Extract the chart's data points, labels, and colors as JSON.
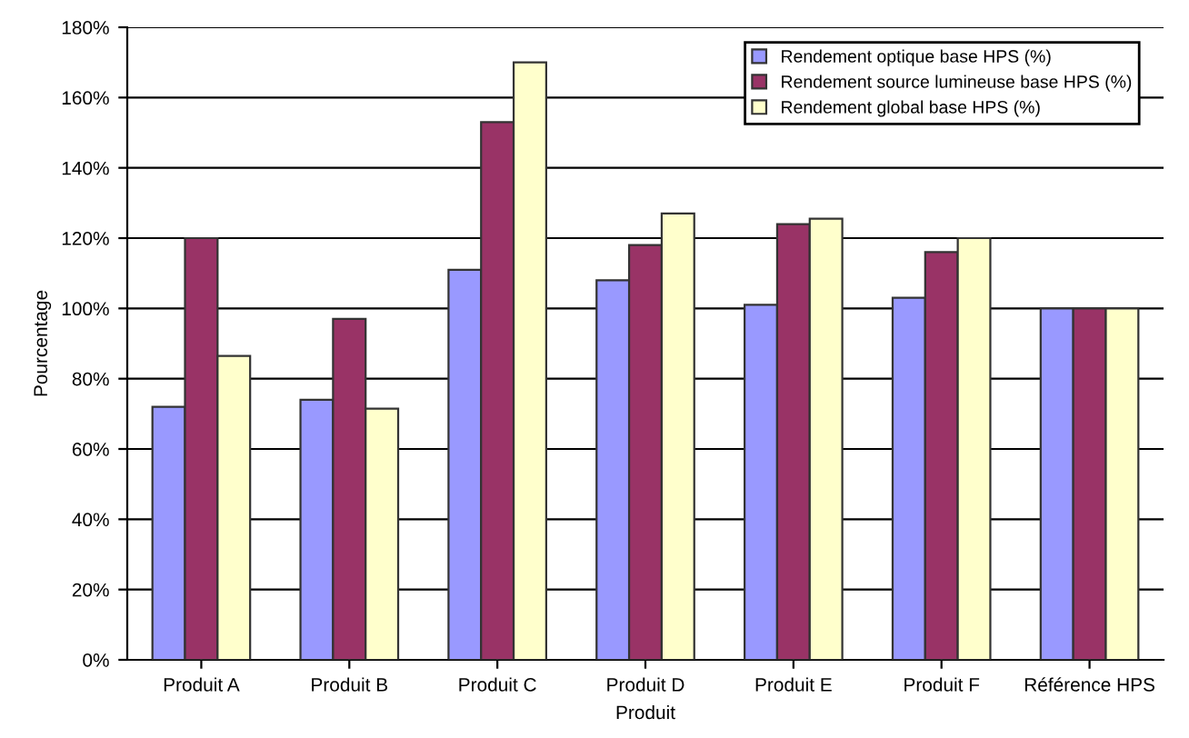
{
  "chart_data": {
    "type": "bar",
    "xlabel": "Produit",
    "ylabel": "Pourcentage",
    "categories": [
      "Produit A",
      "Produit B",
      "Produit C",
      "Produit D",
      "Produit E",
      "Produit F",
      "Référence HPS"
    ],
    "series": [
      {
        "name": "Rendement optique base HPS (%)",
        "color": "#9999ff",
        "values": [
          72,
          74,
          111,
          108,
          101,
          103,
          100
        ]
      },
      {
        "name": "Rendement source lumineuse base HPS (%)",
        "color": "#993366",
        "values": [
          120,
          97,
          153,
          118,
          124,
          116,
          100
        ]
      },
      {
        "name": "Rendement global base HPS (%)",
        "color": "#ffffcc",
        "values": [
          86.5,
          71.5,
          170,
          127,
          125.5,
          120,
          100
        ]
      }
    ],
    "ylim": [
      0,
      180
    ],
    "yticks": [
      {
        "value": 0,
        "label": "0%"
      },
      {
        "value": 20,
        "label": "20%"
      },
      {
        "value": 40,
        "label": "40%"
      },
      {
        "value": 60,
        "label": "60%"
      },
      {
        "value": 80,
        "label": "80%"
      },
      {
        "value": 100,
        "label": "100%"
      },
      {
        "value": 120,
        "label": "120%"
      },
      {
        "value": 140,
        "label": "140%"
      },
      {
        "value": 160,
        "label": "160%"
      },
      {
        "value": 180,
        "label": "180%"
      }
    ],
    "grid": "y",
    "legend": "top right"
  }
}
